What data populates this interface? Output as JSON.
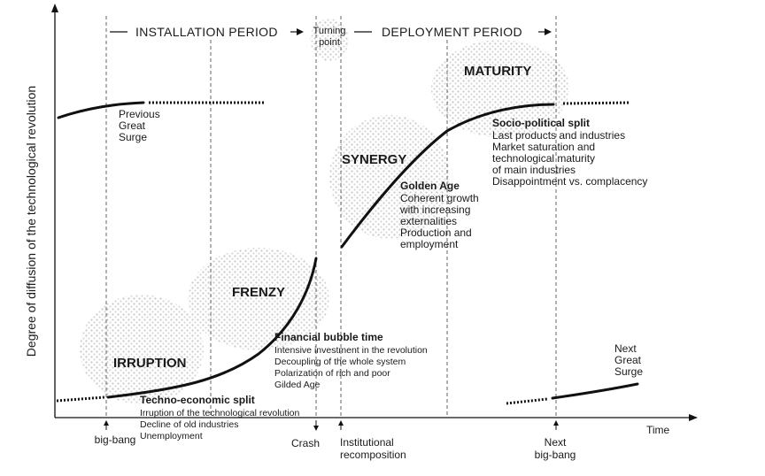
{
  "axes": {
    "y_label": "Degree of diffusion of the technological revolution",
    "x_label": "Time"
  },
  "periods": {
    "installation": "INSTALLATION PERIOD",
    "turning_point_line1": "Turning",
    "turning_point_line2": "point",
    "deployment": "DEPLOYMENT PERIOD"
  },
  "previous_surge": [
    "Previous",
    "Great",
    "Surge"
  ],
  "next_surge": [
    "Next",
    "Great",
    "Surge"
  ],
  "phases": {
    "irruption": "IRRUPTION",
    "frenzy": "FRENZY",
    "synergy": "SYNERGY",
    "maturity": "MATURITY"
  },
  "techno_split": {
    "title": "Techno-economic split",
    "lines": [
      "Irruption of the technological revolution",
      "Decline of old industries",
      "Unemployment"
    ]
  },
  "bubble": {
    "title": "Financial bubble time",
    "lines": [
      "Intensive investment in the revolution",
      "Decoupling of the whole system",
      "Polarization of rich and poor",
      "Gilded Age"
    ]
  },
  "golden_age": {
    "title": "Golden Age",
    "lines": [
      "Coherent growth",
      "with increasing",
      "externalities",
      "Production and",
      "employment"
    ]
  },
  "socio_split": {
    "title": "Socio-political split",
    "lines": [
      "Last products and industries",
      "Market saturation and",
      "technological maturity",
      "of main industries",
      "Disappointment vs. complacency"
    ]
  },
  "events": {
    "big_bang": "big-bang",
    "crash": "Crash",
    "institutional": [
      "Institutional",
      "recomposition"
    ],
    "next_big_bang": [
      "Next",
      "big-bang"
    ]
  },
  "colors": {
    "ink": "#111111",
    "stipple": "#c8c8c8"
  }
}
